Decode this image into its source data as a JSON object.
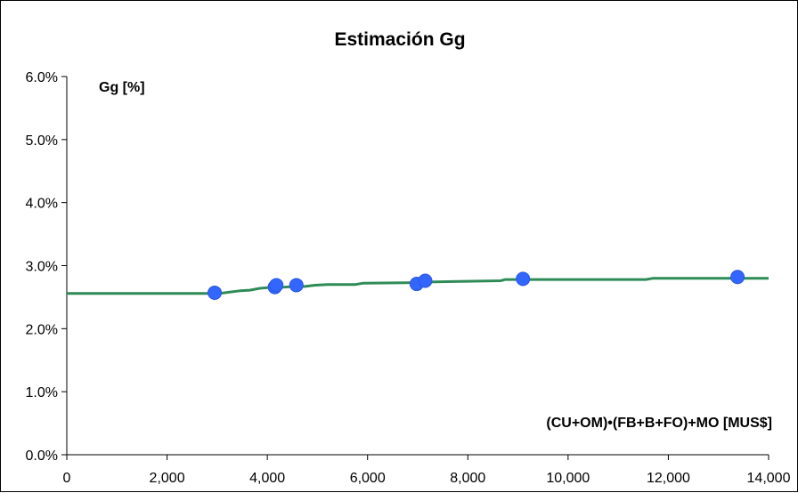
{
  "chart_data": {
    "type": "scatter",
    "title": "Estimación Gg",
    "xlabel": "(CU+OM)•(FB+B+FO)+MO [MUS$]",
    "ylabel": "Gg [%]",
    "xlim": [
      0,
      14000
    ],
    "ylim": [
      0,
      0.06
    ],
    "x_ticks": [
      0,
      2000,
      4000,
      6000,
      8000,
      10000,
      12000,
      14000
    ],
    "x_tick_labels": [
      "0",
      "2,000",
      "4,000",
      "6,000",
      "8,000",
      "10,000",
      "12,000",
      "14,000"
    ],
    "y_ticks": [
      0,
      0.01,
      0.02,
      0.03,
      0.04,
      0.05,
      0.06
    ],
    "y_tick_labels": [
      "0.0%",
      "1.0%",
      "2.0%",
      "3.0%",
      "4.0%",
      "5.0%",
      "6.0%"
    ],
    "grid": false,
    "legend": "none",
    "series": [
      {
        "kind": "points",
        "color": "#3366ff",
        "x": [
          2950,
          4150,
          4180,
          4580,
          6980,
          7150,
          9100,
          13380
        ],
        "y": [
          0.0257,
          0.0266,
          0.0269,
          0.0269,
          0.0271,
          0.0276,
          0.0279,
          0.0282
        ]
      },
      {
        "kind": "step-line",
        "color": "#2e8b57",
        "x": [
          0,
          3050,
          3250,
          3450,
          3650,
          3850,
          4000,
          4350,
          4550,
          4750,
          4950,
          5200,
          5750,
          5900,
          6950,
          7200,
          8650,
          8750,
          11550,
          11700,
          14000
        ],
        "y": [
          0.0256,
          0.0256,
          0.0258,
          0.026,
          0.0261,
          0.0264,
          0.0265,
          0.0266,
          0.0267,
          0.0267,
          0.0269,
          0.027,
          0.027,
          0.0272,
          0.0273,
          0.0274,
          0.0276,
          0.0278,
          0.0278,
          0.028,
          0.028
        ]
      }
    ]
  }
}
